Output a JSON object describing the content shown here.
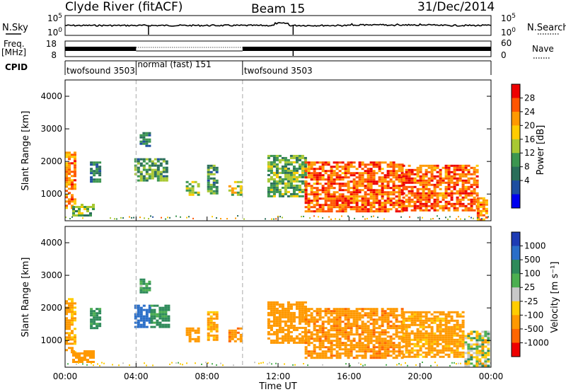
{
  "header": {
    "station": "Clyde River (fitACF)",
    "beam": "Beam 15",
    "date": "31/Dec/2014"
  },
  "side_labels": {
    "nsky": "N.Sky",
    "nsearch": "N.Search",
    "freq_line1": "Freq.",
    "freq_line2": "[MHz]",
    "nave": "Nave",
    "cpid": "CPID"
  },
  "small_axes": {
    "noise_left_top": "10^5",
    "noise_left_bottom": "10^0",
    "noise_right_top": "10^5",
    "noise_right_bottom": "10^0",
    "freq_left_top": "18",
    "freq_left_bottom": "8",
    "nave_right_top": "60",
    "nave_right_bottom": "0"
  },
  "cpid_segments": [
    {
      "start_h": 0.0,
      "end_h": 4.0,
      "label": "twofsound 3503"
    },
    {
      "start_h": 4.0,
      "end_h": 10.0,
      "label": "normal (fast) 151"
    },
    {
      "start_h": 10.0,
      "end_h": 24.0,
      "label": "twofsound 3503"
    }
  ],
  "power_colorbar": {
    "label": "Power [dB]",
    "ticks": [
      "28",
      "24",
      "20",
      "16",
      "12",
      "8",
      "4"
    ],
    "colors": [
      "#ee0000",
      "#ff5500",
      "#ff9900",
      "#ffcc00",
      "#a8c832",
      "#3c9650",
      "#2a6e5a",
      "#1e4ea0",
      "#0000ee"
    ]
  },
  "velocity_colorbar": {
    "label": "Velocity [m s⁻¹]",
    "ticks": [
      "1000",
      "500",
      "100",
      "25",
      "-25",
      "-100",
      "-500",
      "-1000"
    ],
    "colors": [
      "#1e3cb4",
      "#2a6ec8",
      "#2e8a5a",
      "#4caf50",
      "#c8c8c8",
      "#ffcc00",
      "#ff9900",
      "#ff6600",
      "#ee0000"
    ]
  },
  "chart_data": [
    {
      "type": "heatmap",
      "title": "Power",
      "xlabel": "",
      "ylabel": "Slant Range [km]",
      "xlim_hours": [
        0,
        24
      ],
      "ylim": [
        180,
        4500
      ],
      "yticks": [
        "1000",
        "2000",
        "3000",
        "4000"
      ],
      "echo_regions": [
        {
          "t0": 0.0,
          "t1": 0.6,
          "r0": 600,
          "r1": 2300,
          "power_db": 24
        },
        {
          "t0": 0.4,
          "t1": 1.6,
          "r0": 350,
          "r1": 700,
          "power_db": 14
        },
        {
          "t0": 1.4,
          "t1": 2.0,
          "r0": 1400,
          "r1": 2000,
          "power_db": 10
        },
        {
          "t0": 3.9,
          "t1": 5.8,
          "r0": 1400,
          "r1": 2100,
          "power_db": 12
        },
        {
          "t0": 4.2,
          "t1": 4.7,
          "r0": 2500,
          "r1": 2900,
          "power_db": 10
        },
        {
          "t0": 6.8,
          "t1": 7.5,
          "r0": 1000,
          "r1": 1400,
          "power_db": 16
        },
        {
          "t0": 8.0,
          "t1": 8.6,
          "r0": 1000,
          "r1": 1900,
          "power_db": 12
        },
        {
          "t0": 9.2,
          "t1": 9.9,
          "r0": 950,
          "r1": 1400,
          "power_db": 18
        },
        {
          "t0": 11.4,
          "t1": 13.5,
          "r0": 900,
          "r1": 2200,
          "power_db": 14
        },
        {
          "t0": 13.5,
          "t1": 19.0,
          "r0": 450,
          "r1": 2000,
          "power_db": 26
        },
        {
          "t0": 19.0,
          "t1": 23.2,
          "r0": 500,
          "r1": 1900,
          "power_db": 26
        },
        {
          "t0": 23.2,
          "t1": 23.8,
          "r0": 200,
          "r1": 900,
          "power_db": 24
        }
      ]
    },
    {
      "type": "heatmap",
      "title": "Velocity",
      "xlabel": "Time UT",
      "ylabel": "Slant Range [km]",
      "xlim_hours": [
        0,
        24
      ],
      "ylim": [
        180,
        4500
      ],
      "xticks": [
        "00:00",
        "04:00",
        "08:00",
        "12:00",
        "16:00",
        "20:00",
        "00:00"
      ],
      "yticks": [
        "1000",
        "2000",
        "3000",
        "4000"
      ],
      "echo_regions": [
        {
          "t0": 0.0,
          "t1": 0.6,
          "r0": 600,
          "r1": 2300,
          "velocity": -200
        },
        {
          "t0": 0.4,
          "t1": 1.6,
          "r0": 350,
          "r1": 700,
          "velocity": -300
        },
        {
          "t0": 1.4,
          "t1": 2.0,
          "r0": 1400,
          "r1": 2000,
          "velocity": 200
        },
        {
          "t0": 3.9,
          "t1": 4.8,
          "r0": 1400,
          "r1": 2100,
          "velocity": 800
        },
        {
          "t0": 4.8,
          "t1": 5.8,
          "r0": 1400,
          "r1": 2100,
          "velocity": 200
        },
        {
          "t0": 4.2,
          "t1": 4.7,
          "r0": 2500,
          "r1": 2900,
          "velocity": 150
        },
        {
          "t0": 6.8,
          "t1": 7.5,
          "r0": 1000,
          "r1": 1400,
          "velocity": -300
        },
        {
          "t0": 8.0,
          "t1": 8.6,
          "r0": 1000,
          "r1": 1900,
          "velocity": -200
        },
        {
          "t0": 9.2,
          "t1": 9.9,
          "r0": 950,
          "r1": 1400,
          "velocity": -400
        },
        {
          "t0": 11.4,
          "t1": 13.5,
          "r0": 900,
          "r1": 2200,
          "velocity": -300
        },
        {
          "t0": 13.5,
          "t1": 19.0,
          "r0": 450,
          "r1": 2000,
          "velocity": -400
        },
        {
          "t0": 19.0,
          "t1": 22.5,
          "r0": 500,
          "r1": 1900,
          "velocity": -200
        },
        {
          "t0": 22.5,
          "t1": 23.8,
          "r0": 200,
          "r1": 1300,
          "velocity": 0
        }
      ]
    }
  ]
}
